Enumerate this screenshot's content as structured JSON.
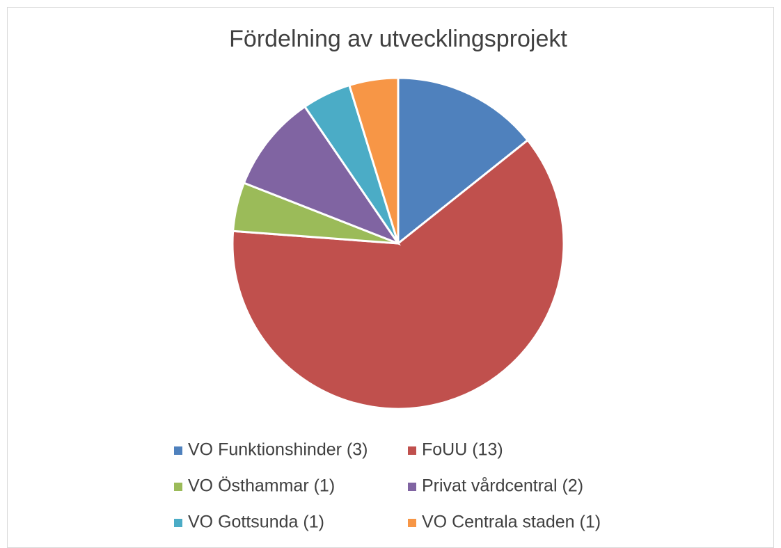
{
  "chart_data": {
    "type": "pie",
    "title": "Fördelning av utvecklingsprojekt",
    "categories": [
      "VO Funktionshinder (3)",
      "FoUU (13)",
      "VO Östhammar (1)",
      "Privat vårdcentral (2)",
      "VO Gottsunda (1)",
      "VO Centrala staden (1)"
    ],
    "values": [
      3,
      13,
      1,
      2,
      1,
      1
    ],
    "colors": [
      "#4f81bd",
      "#c0504d",
      "#9bbb59",
      "#8064a2",
      "#4bacc6",
      "#f79646"
    ],
    "legend": "bottom"
  }
}
